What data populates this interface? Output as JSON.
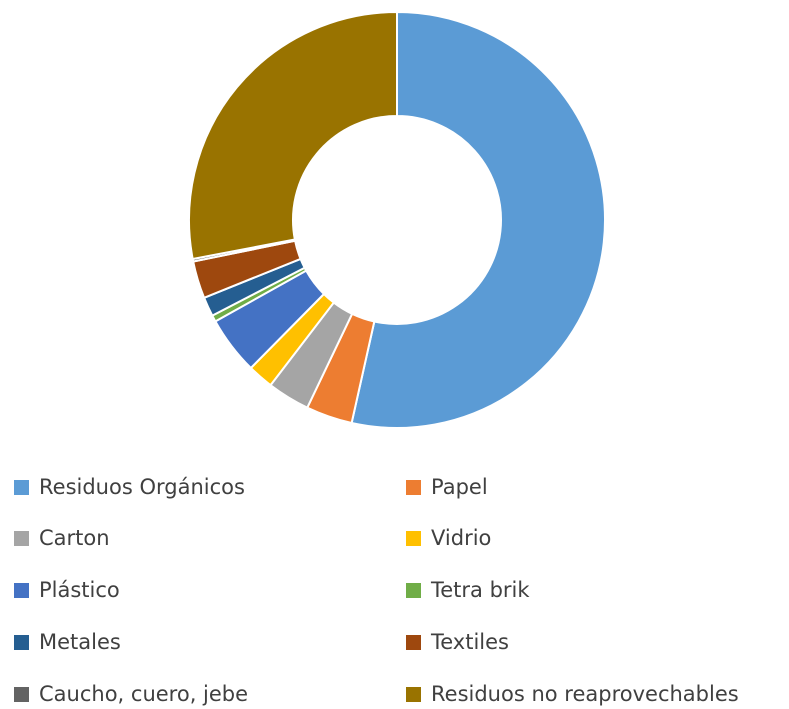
{
  "chart_data": {
    "type": "pie",
    "subtype": "donut",
    "title": "",
    "legend_position": "bottom",
    "categories": [
      "Residuos Orgánicos",
      "Papel",
      "Carton",
      "Vidrio",
      "Plástico",
      "Tetra brik",
      "Metales",
      "Textiles",
      "Caucho, cuero, jebe",
      "Residuos no reaprovechables"
    ],
    "values": [
      53.5,
      3.6,
      3.3,
      2.0,
      4.5,
      0.5,
      1.5,
      2.9,
      0.2,
      28.0
    ],
    "colors": [
      "#5b9bd5",
      "#ed7d31",
      "#a5a5a5",
      "#ffc000",
      "#4472c4",
      "#70ad47",
      "#255e91",
      "#9e480e",
      "#636363",
      "#997300"
    ]
  }
}
